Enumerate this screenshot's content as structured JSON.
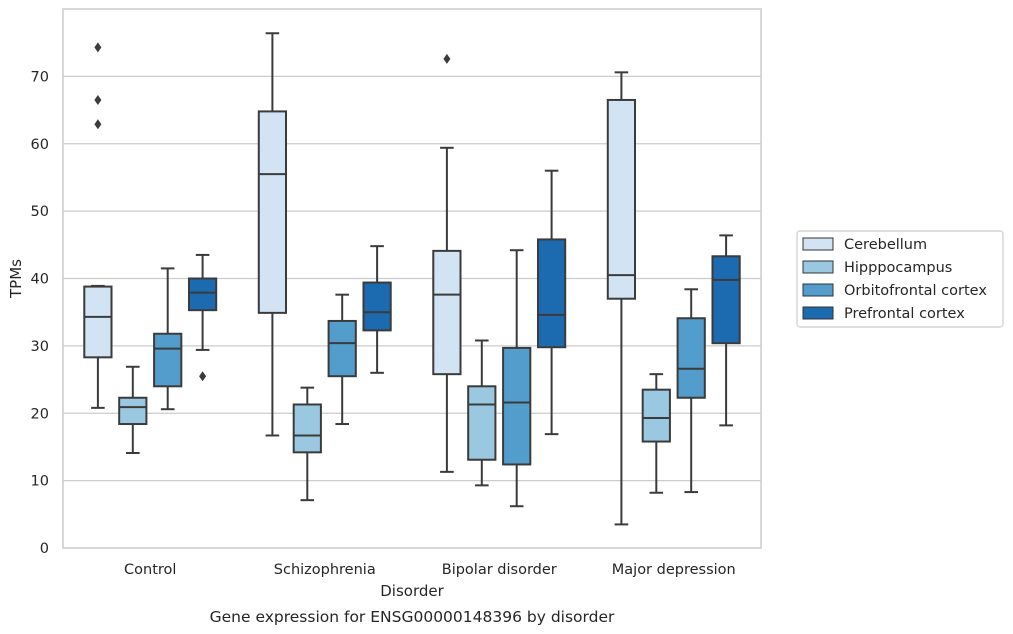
{
  "chart_data": {
    "type": "box",
    "caption": "Gene expression for ENSG00000148396 by disorder",
    "xlabel": "Disorder",
    "ylabel": "TPMs",
    "ylim": [
      0,
      80
    ],
    "yticks": [
      0,
      10,
      20,
      30,
      40,
      50,
      60,
      70
    ],
    "grid": "horizontal",
    "legend_position": "right",
    "categories": [
      "Control",
      "Schizophrenia",
      "Bipolar disorder",
      "Major depression"
    ],
    "series": [
      {
        "name": "Cerebellum",
        "color": "#d2e3f3",
        "boxes": [
          {
            "whisker_low": 20.8,
            "q1": 28.3,
            "median": 34.3,
            "q3": 38.8,
            "whisker_high": 38.9,
            "outliers": [
              62.9,
              66.5,
              74.3
            ]
          },
          {
            "whisker_low": 16.7,
            "q1": 34.9,
            "median": 55.5,
            "q3": 64.8,
            "whisker_high": 76.4,
            "outliers": []
          },
          {
            "whisker_low": 11.3,
            "q1": 25.8,
            "median": 37.6,
            "q3": 44.1,
            "whisker_high": 59.4,
            "outliers": [
              72.6
            ]
          },
          {
            "whisker_low": 3.5,
            "q1": 37.0,
            "median": 40.5,
            "q3": 66.5,
            "whisker_high": 70.6,
            "outliers": []
          }
        ]
      },
      {
        "name": "Hipppocampus",
        "color": "#9ac8e0",
        "boxes": [
          {
            "whisker_low": 14.1,
            "q1": 18.4,
            "median": 20.9,
            "q3": 22.3,
            "whisker_high": 26.9,
            "outliers": []
          },
          {
            "whisker_low": 7.1,
            "q1": 14.2,
            "median": 16.7,
            "q3": 21.3,
            "whisker_high": 23.8,
            "outliers": []
          },
          {
            "whisker_low": 9.3,
            "q1": 13.1,
            "median": 21.3,
            "q3": 24.0,
            "whisker_high": 30.8,
            "outliers": []
          },
          {
            "whisker_low": 8.2,
            "q1": 15.8,
            "median": 19.3,
            "q3": 23.5,
            "whisker_high": 25.8,
            "outliers": []
          }
        ]
      },
      {
        "name": "Orbitofrontal cortex",
        "color": "#529dcc",
        "boxes": [
          {
            "whisker_low": 20.6,
            "q1": 24.0,
            "median": 29.6,
            "q3": 31.8,
            "whisker_high": 41.5,
            "outliers": []
          },
          {
            "whisker_low": 18.4,
            "q1": 25.5,
            "median": 30.4,
            "q3": 33.7,
            "whisker_high": 37.6,
            "outliers": []
          },
          {
            "whisker_low": 6.2,
            "q1": 12.4,
            "median": 21.6,
            "q3": 29.7,
            "whisker_high": 44.2,
            "outliers": []
          },
          {
            "whisker_low": 8.3,
            "q1": 22.3,
            "median": 26.6,
            "q3": 34.1,
            "whisker_high": 38.4,
            "outliers": []
          }
        ]
      },
      {
        "name": "Prefrontal cortex",
        "color": "#1c6aaf",
        "boxes": [
          {
            "whisker_low": 29.4,
            "q1": 35.3,
            "median": 37.9,
            "q3": 40.0,
            "whisker_high": 43.5,
            "outliers": [
              25.5
            ]
          },
          {
            "whisker_low": 26.0,
            "q1": 32.3,
            "median": 35.0,
            "q3": 39.4,
            "whisker_high": 44.8,
            "outliers": []
          },
          {
            "whisker_low": 16.9,
            "q1": 29.8,
            "median": 34.6,
            "q3": 45.8,
            "whisker_high": 56.0,
            "outliers": []
          },
          {
            "whisker_low": 18.2,
            "q1": 30.4,
            "median": 39.8,
            "q3": 43.3,
            "whisker_high": 46.4,
            "outliers": []
          }
        ]
      }
    ]
  }
}
